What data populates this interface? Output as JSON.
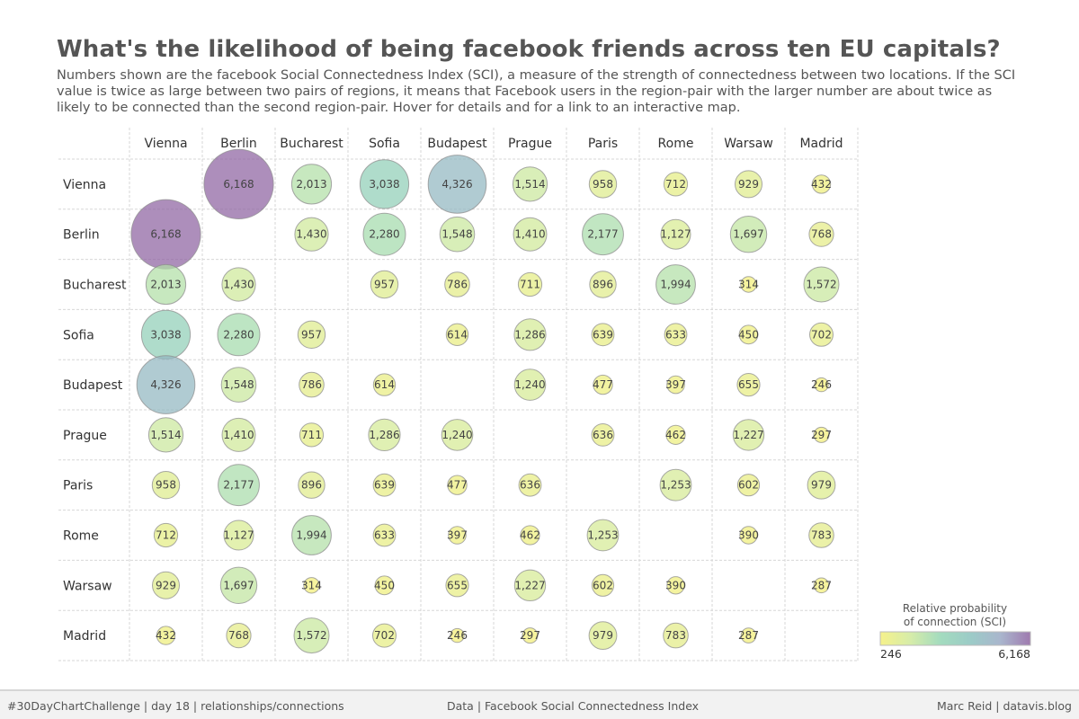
{
  "title": "What's the likelihood of being facebook friends across ten EU capitals?",
  "subtitle": "Numbers shown are the facebook Social Connectedness Index (SCI), a measure of the strength of connectedness between two locations. If the SCI value is twice as large between two pairs of regions, it means that Facebook users in the region-pair with the larger number are about twice as likely to be connected than the second region-pair. Hover for details and for a link to an interactive map.",
  "chart_data": {
    "type": "bubble-matrix",
    "title": "What's the likelihood of being facebook friends across ten EU capitals?",
    "columns": [
      "Vienna",
      "Berlin",
      "Bucharest",
      "Sofia",
      "Budapest",
      "Prague",
      "Paris",
      "Rome",
      "Warsaw",
      "Madrid"
    ],
    "rows": [
      "Vienna",
      "Berlin",
      "Bucharest",
      "Sofia",
      "Budapest",
      "Prague",
      "Paris",
      "Rome",
      "Warsaw",
      "Madrid"
    ],
    "values": [
      [
        null,
        6168,
        2013,
        3038,
        4326,
        1514,
        958,
        712,
        929,
        432
      ],
      [
        6168,
        null,
        1430,
        2280,
        1548,
        1410,
        2177,
        1127,
        1697,
        768
      ],
      [
        2013,
        1430,
        null,
        957,
        786,
        711,
        896,
        1994,
        314,
        1572
      ],
      [
        3038,
        2280,
        957,
        null,
        614,
        1286,
        639,
        633,
        450,
        702
      ],
      [
        4326,
        1548,
        786,
        614,
        null,
        1240,
        477,
        397,
        655,
        246
      ],
      [
        1514,
        1410,
        711,
        1286,
        1240,
        null,
        636,
        462,
        1227,
        297
      ],
      [
        958,
        2177,
        896,
        639,
        477,
        636,
        null,
        1253,
        602,
        979
      ],
      [
        712,
        1127,
        1994,
        633,
        397,
        462,
        1253,
        null,
        390,
        783
      ],
      [
        929,
        1697,
        314,
        450,
        655,
        1227,
        602,
        390,
        null,
        287
      ],
      [
        432,
        768,
        1572,
        702,
        246,
        297,
        979,
        783,
        287,
        null
      ]
    ],
    "legend": {
      "title_lines": [
        "Relative probability",
        "of connection (SCI)"
      ],
      "min": 246,
      "max": 6168,
      "min_label": "246",
      "max_label": "6,168",
      "placement": "bottom-right"
    },
    "color_scale": [
      "#f4ef76",
      "#cfe99a",
      "#93d5b3",
      "#8ac2bd",
      "#9aa9c4",
      "#8e63a1"
    ]
  },
  "footer": {
    "left": "#30DayChartChallenge | day 18 | relationships/connections",
    "center": "Data | Facebook Social Connectedness Index",
    "right": "Marc Reid | datavis.blog"
  }
}
